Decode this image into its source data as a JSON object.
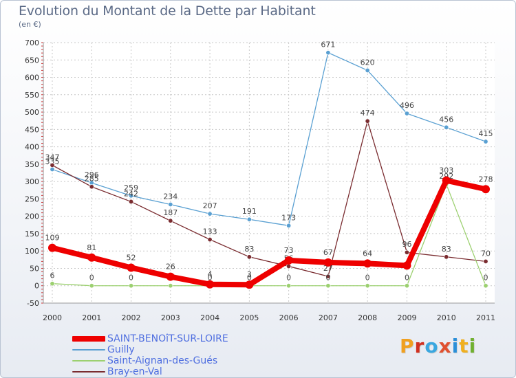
{
  "title": "Evolution du Montant de la Dette par Habitant",
  "subtitle": "(en €)",
  "logo": {
    "text": "Proxiti",
    "letter_colors": [
      "#f0a020",
      "#d03020",
      "#3aa7e0",
      "#e05030",
      "#2a8fd8",
      "#f0b020",
      "#70b030"
    ]
  },
  "chart_data": {
    "type": "line",
    "x": [
      "2000",
      "2001",
      "2002",
      "2003",
      "2004",
      "2005",
      "2006",
      "2007",
      "2008",
      "2009",
      "2010",
      "2011"
    ],
    "ylim": [
      -50,
      700
    ],
    "yticks": [
      -50,
      0,
      50,
      100,
      150,
      200,
      250,
      300,
      350,
      400,
      450,
      500,
      550,
      600,
      650,
      700
    ],
    "grid": true,
    "legend": "bottom-left",
    "series": [
      {
        "name": "Guilly",
        "color": "#5aa0d2",
        "values": [
          335,
          296,
          259,
          234,
          207,
          191,
          173,
          671,
          620,
          496,
          456,
          415
        ],
        "labels": [
          "335",
          "296",
          "259",
          "234",
          "207",
          "191",
          "173",
          "671",
          "620",
          "496",
          "456",
          "415"
        ]
      },
      {
        "name": "Bray-en-Val",
        "color": "#7a2c30",
        "values": [
          347,
          285,
          242,
          187,
          133,
          83,
          56,
          27,
          474,
          96,
          83,
          70
        ],
        "labels": [
          "347",
          "285",
          "242",
          "187",
          "133",
          "83",
          "56",
          "27",
          "474",
          "96",
          "83",
          "70"
        ]
      },
      {
        "name": "Saint-Aignan-des-Gués",
        "color": "#9cd070",
        "values": [
          6,
          0,
          0,
          0,
          0,
          0,
          0,
          0,
          0,
          0,
          292,
          0
        ],
        "labels": [
          "6",
          "0",
          "0",
          "0",
          "0",
          "0",
          "0",
          "0",
          "0",
          "0",
          "292",
          "0"
        ]
      },
      {
        "name": "SAINT-BENOîT-SUR-LOIRE",
        "color": "#ee0000",
        "values": [
          109,
          81,
          52,
          26,
          4,
          3,
          73,
          67,
          64,
          58,
          303,
          278
        ],
        "labels": [
          "109",
          "81",
          "52",
          "26",
          "4",
          "3",
          "73",
          "67",
          "64",
          "",
          "303",
          "278"
        ]
      }
    ],
    "legend_order": [
      "SAINT-BENOîT-SUR-LOIRE",
      "Guilly",
      "Saint-Aignan-des-Gués",
      "Bray-en-Val"
    ]
  }
}
